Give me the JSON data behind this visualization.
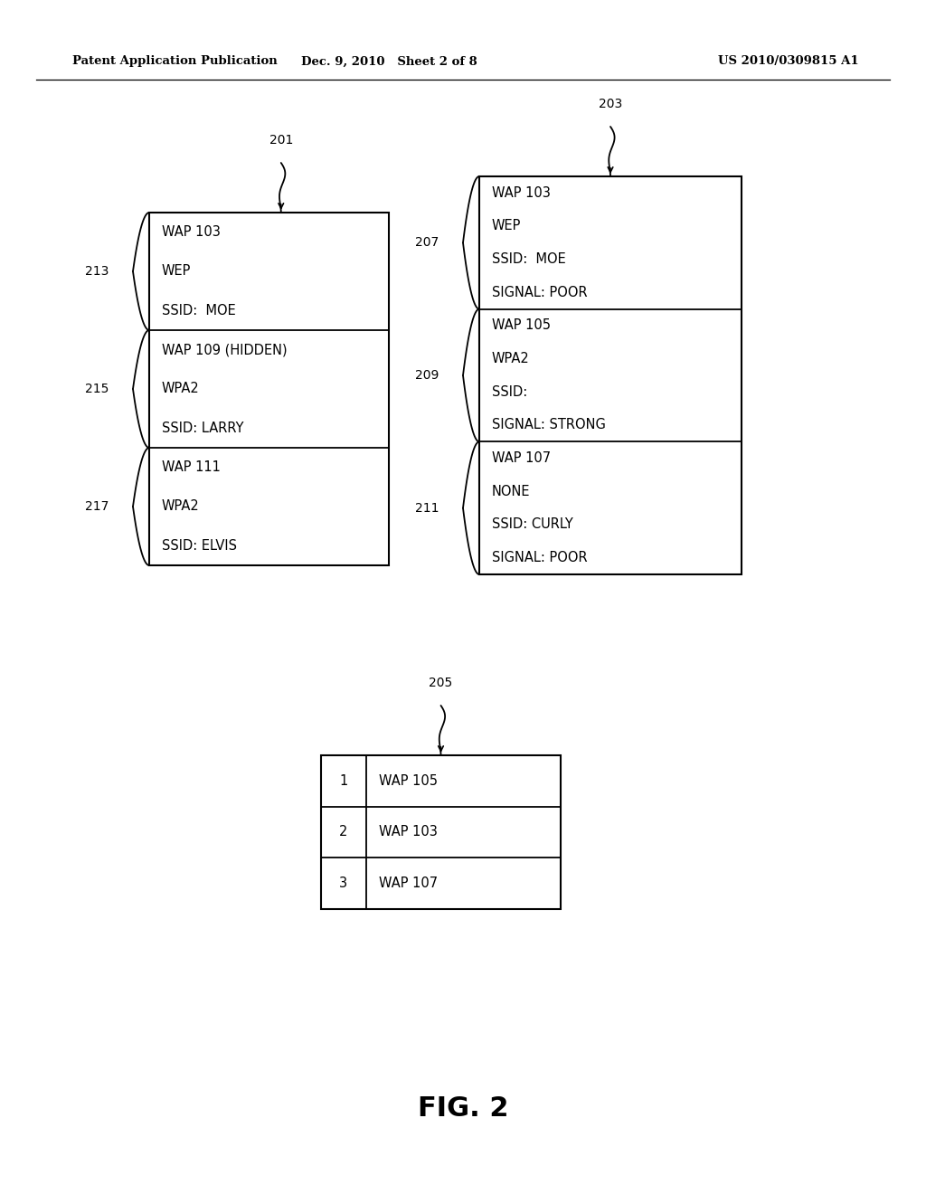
{
  "header_left": "Patent Application Publication",
  "header_mid": "Dec. 9, 2010   Sheet 2 of 8",
  "header_right": "US 2010/0309815 A1",
  "fig_label": "FIG. 2",
  "box201_label": "201",
  "box201_sections": [
    [
      "WAP 103",
      "WEP",
      "SSID:  MOE"
    ],
    [
      "WAP 109 (HIDDEN)",
      "WPA2",
      "SSID: LARRY"
    ],
    [
      "WAP 111",
      "WPA2",
      "SSID: ELVIS"
    ]
  ],
  "box201_brace_labels": [
    "213",
    "215",
    "217"
  ],
  "box203_label": "203",
  "box203_sections": [
    [
      "WAP 103",
      "WEP",
      "SSID:  MOE",
      "SIGNAL: POOR"
    ],
    [
      "WAP 105",
      "WPA2",
      "SSID:",
      "SIGNAL: STRONG"
    ],
    [
      "WAP 107",
      "NONE",
      "SSID: CURLY",
      "SIGNAL: POOR"
    ]
  ],
  "box203_brace_labels": [
    "207",
    "209",
    "211"
  ],
  "box205_label": "205",
  "box205_rows": [
    [
      "1",
      "WAP 105"
    ],
    [
      "2",
      "WAP 103"
    ],
    [
      "3",
      "WAP 107"
    ]
  ],
  "bg_color": "#ffffff",
  "line_color": "#000000",
  "text_color": "#000000"
}
